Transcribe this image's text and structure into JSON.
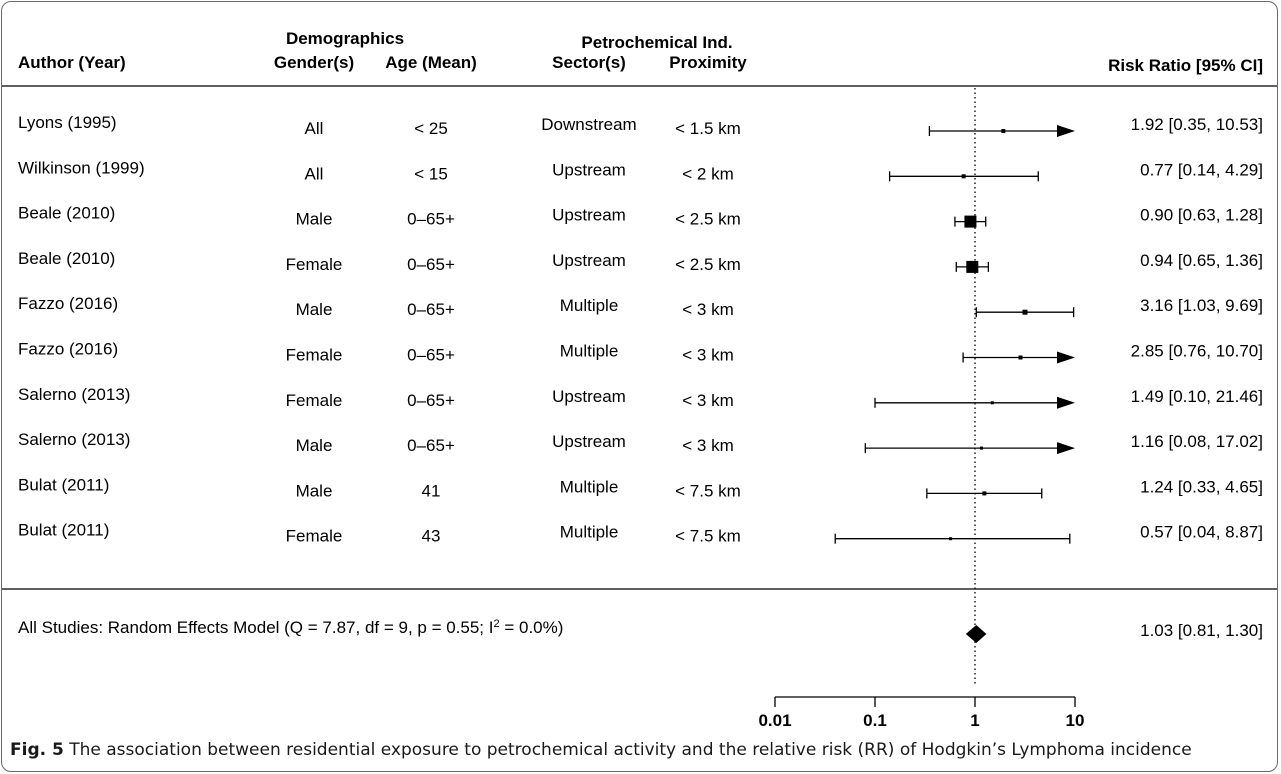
{
  "chart_data": {
    "type": "forest",
    "x_scale": "log",
    "xlim": [
      0.01,
      10
    ],
    "x_ticks": [
      "0.01",
      "0.1",
      "1",
      "10"
    ],
    "reference_line": 1,
    "headers": {
      "demographics": "Demographics",
      "petrochemical": "Petrochemical Ind.",
      "author": "Author (Year)",
      "gender": "Gender(s)",
      "age": "Age (Mean)",
      "sector": "Sector(s)",
      "proximity": "Proximity",
      "rr": "Risk Ratio [95% CI]"
    },
    "studies": [
      {
        "author": "Lyons (1995)",
        "gender": "All",
        "age": "< 25",
        "sector": "Downstream",
        "proximity": "< 1.5 km",
        "rr": 1.92,
        "lo": 0.35,
        "hi": 10.53,
        "rr_text": "1.92 [0.35, 10.53]",
        "arrow": true,
        "size": 4
      },
      {
        "author": "Wilkinson (1999)",
        "gender": "All",
        "age": "< 15",
        "sector": "Upstream",
        "proximity": "< 2 km",
        "rr": 0.77,
        "lo": 0.14,
        "hi": 4.29,
        "rr_text": "0.77 [0.14,  4.29]",
        "arrow": false,
        "size": 4
      },
      {
        "author": "Beale (2010)",
        "gender": "Male",
        "age": "0–65+",
        "sector": "Upstream",
        "proximity": "< 2.5 km",
        "rr": 0.9,
        "lo": 0.63,
        "hi": 1.28,
        "rr_text": "0.90 [0.63,  1.28]",
        "arrow": false,
        "size": 12
      },
      {
        "author": "Beale (2010)",
        "gender": "Female",
        "age": "0–65+",
        "sector": "Upstream",
        "proximity": "< 2.5 km",
        "rr": 0.94,
        "lo": 0.65,
        "hi": 1.36,
        "rr_text": "0.94 [0.65,  1.36]",
        "arrow": false,
        "size": 12
      },
      {
        "author": "Fazzo (2016)",
        "gender": "Male",
        "age": "0–65+",
        "sector": "Multiple",
        "proximity": "< 3 km",
        "rr": 3.16,
        "lo": 1.03,
        "hi": 9.69,
        "rr_text": "3.16 [1.03,  9.69]",
        "arrow": false,
        "size": 5
      },
      {
        "author": "Fazzo (2016)",
        "gender": "Female",
        "age": "0–65+",
        "sector": "Multiple",
        "proximity": "< 3 km",
        "rr": 2.85,
        "lo": 0.76,
        "hi": 10.7,
        "rr_text": "2.85 [0.76, 10.70]",
        "arrow": true,
        "size": 4
      },
      {
        "author": "Salerno (2013)",
        "gender": "Female",
        "age": "0–65+",
        "sector": "Upstream",
        "proximity": "< 3 km",
        "rr": 1.49,
        "lo": 0.1,
        "hi": 21.46,
        "rr_text": "1.49 [0.10, 21.46]",
        "arrow": true,
        "size": 3
      },
      {
        "author": "Salerno (2013)",
        "gender": "Male",
        "age": "0–65+",
        "sector": "Upstream",
        "proximity": "< 3 km",
        "rr": 1.16,
        "lo": 0.08,
        "hi": 17.02,
        "rr_text": "1.16 [0.08, 17.02]",
        "arrow": true,
        "size": 3
      },
      {
        "author": "Bulat (2011)",
        "gender": "Male",
        "age": "41",
        "sector": "Multiple",
        "proximity": "< 7.5 km",
        "rr": 1.24,
        "lo": 0.33,
        "hi": 4.65,
        "rr_text": "1.24 [0.33,  4.65]",
        "arrow": false,
        "size": 4
      },
      {
        "author": "Bulat (2011)",
        "gender": "Female",
        "age": "43",
        "sector": "Multiple",
        "proximity": "< 7.5 km",
        "rr": 0.57,
        "lo": 0.04,
        "hi": 8.87,
        "rr_text": "0.57 [0.04,  8.87]",
        "arrow": false,
        "size": 3
      }
    ],
    "summary": {
      "label_pre": "All Studies: Random Effects Model (Q = 7.87, df = 9, p = 0.55; I",
      "label_sup": "2",
      "label_post": " = 0.0%)",
      "rr": 1.03,
      "lo": 0.81,
      "hi": 1.3,
      "rr_text": "1.03 [0.81,  1.30]"
    },
    "colors": {
      "ink": "#000000",
      "frame": "#6b6b6b"
    }
  },
  "caption": {
    "label": "Fig. 5",
    "text": " The association between residential exposure to petrochemical activity and the relative risk (RR) of Hodgkin’s Lymphoma incidence"
  }
}
